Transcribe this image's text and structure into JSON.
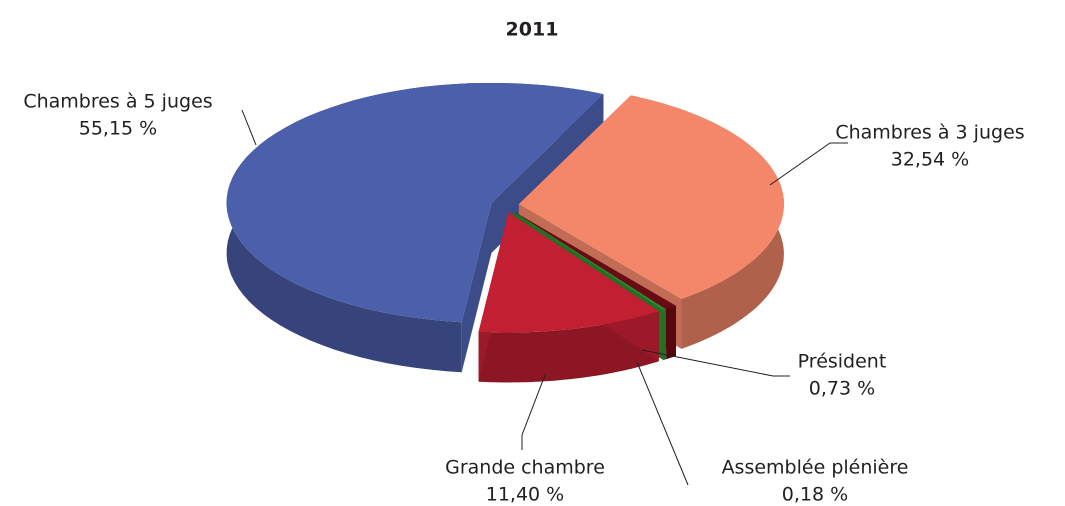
{
  "chart_data": {
    "type": "pie3d",
    "title": "2011",
    "categories": [
      "Chambres à 3 juges",
      "Président",
      "Assemblée plénière",
      "Grande chambre",
      "Chambres à 5 juges"
    ],
    "values": [
      32.54,
      0.73,
      0.18,
      11.4,
      55.15
    ],
    "value_labels": [
      "32,54 %",
      "0,73 %",
      "0,18 %",
      "11,40 %",
      "55,15 %"
    ],
    "colors": [
      "#f4876a",
      "#6a0a14",
      "#2e8b2e",
      "#c21f32",
      "#4b5fab"
    ]
  }
}
